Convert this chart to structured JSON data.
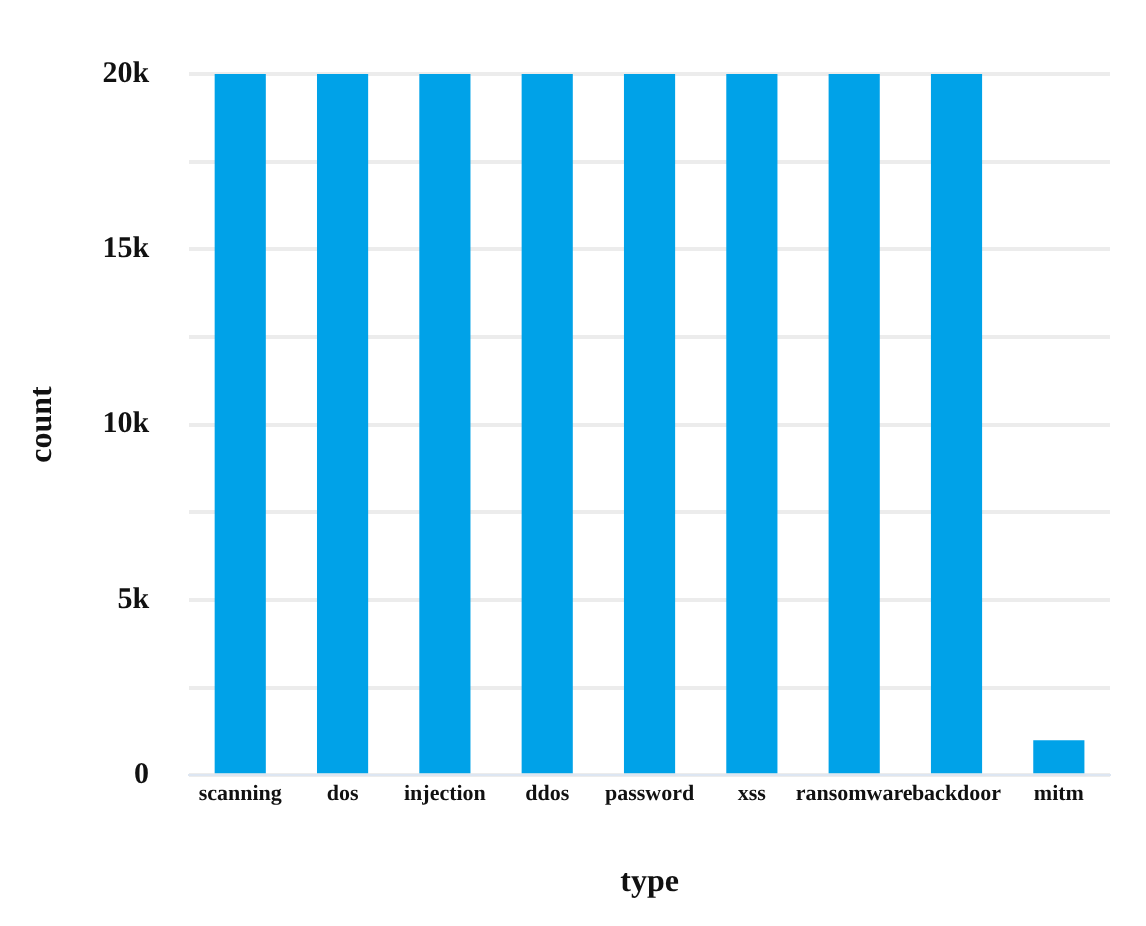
{
  "chart_data": {
    "type": "bar",
    "xlabel": "type",
    "ylabel": "count",
    "categories": [
      "scanning",
      "dos",
      "injection",
      "ddos",
      "password",
      "xss",
      "ransomware",
      "backdoor",
      "mitm"
    ],
    "series": [
      {
        "color": "#00a2e8",
        "values": [
          20000,
          20000,
          20000,
          20000,
          20000,
          20000,
          20000,
          20000,
          1000
        ]
      }
    ],
    "ylim": [
      0,
      20000
    ],
    "yticks": [
      {
        "value": 0,
        "label": "0"
      },
      {
        "value": 2500,
        "label": null
      },
      {
        "value": 5000,
        "label": "5k"
      },
      {
        "value": 7500,
        "label": null
      },
      {
        "value": 10000,
        "label": "10k"
      },
      {
        "value": 12500,
        "label": null
      },
      {
        "value": 15000,
        "label": "15k"
      },
      {
        "value": 17500,
        "label": null
      },
      {
        "value": 20000,
        "label": "20k"
      }
    ],
    "grid": "y",
    "legend": false
  }
}
